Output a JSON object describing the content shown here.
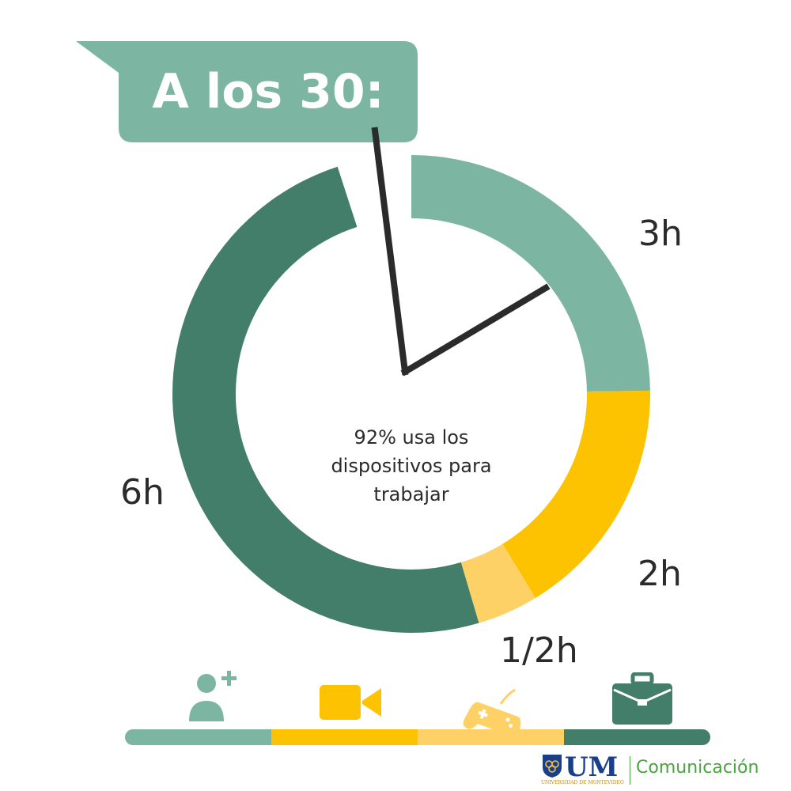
{
  "callout": {
    "title": "A los 30:"
  },
  "center_text": [
    "92% usa los",
    "dispositivos para",
    "trabajar"
  ],
  "colors": {
    "social": "#7cb6a2",
    "video": "#fdc300",
    "games": "#fdd166",
    "work": "#437e6a",
    "text": "#2b2b2b",
    "clock_hand": "#2b2b2b"
  },
  "legend": {
    "icons": [
      "add-user-icon",
      "video-camera-icon",
      "gamepad-icon",
      "briefcase-icon"
    ]
  },
  "logo": {
    "mark": "UM",
    "subtitle": "UNIVERSIDAD DE MONTEVIDEO",
    "unit": "Comunicación"
  },
  "chart_data": {
    "type": "pie",
    "title": "A los 30:",
    "categories": [
      "3h",
      "2h",
      "1/2h",
      "6h"
    ],
    "values": [
      3,
      2,
      0.5,
      6
    ],
    "unit": "h",
    "labels": [
      "3h",
      "2h",
      "1/2h",
      "6h"
    ],
    "annotation": "92% usa los dispositivos para trabajar"
  }
}
